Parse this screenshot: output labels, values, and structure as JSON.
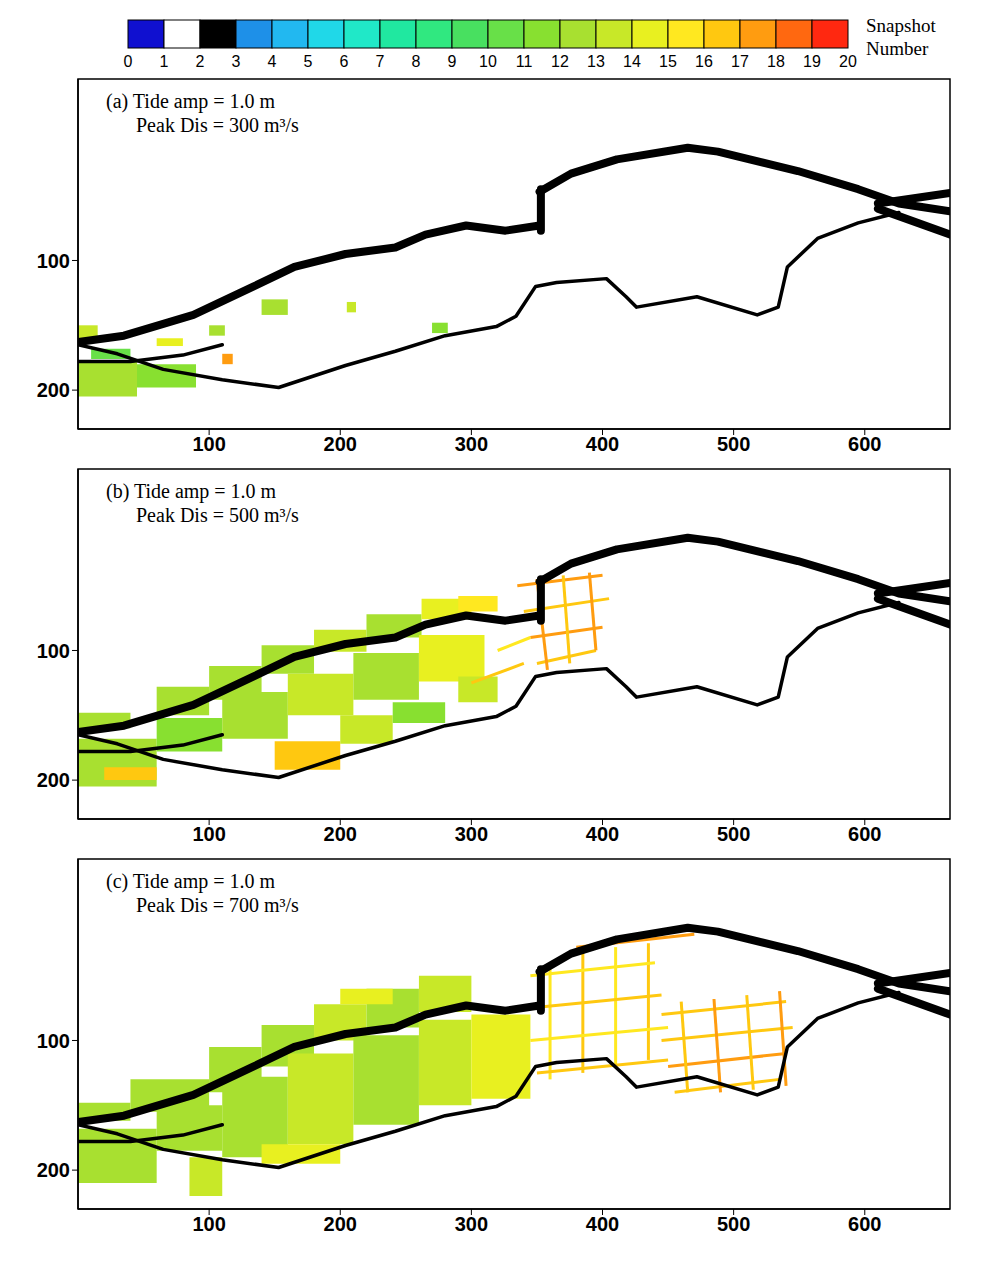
{
  "colorbar": {
    "label": "Snapshot Number",
    "ticks": [
      0,
      1,
      2,
      3,
      4,
      5,
      6,
      7,
      8,
      9,
      10,
      11,
      12,
      13,
      14,
      15,
      16,
      17,
      18,
      19,
      20
    ],
    "colors": [
      "#1010d0",
      "#ffffff",
      "#000000",
      "#1e90e8",
      "#22b8f0",
      "#20d8e8",
      "#20e8c8",
      "#20e8a0",
      "#30e880",
      "#48e060",
      "#68e048",
      "#88e030",
      "#a8e030",
      "#c8e828",
      "#e8f020",
      "#ffe820",
      "#ffc810",
      "#ff9c10",
      "#ff6810",
      "#ff2810"
    ]
  },
  "channels": [
    {
      "color": "#000000",
      "line_style": "thick",
      "points": [
        [
          0,
          163
        ],
        [
          35,
          158
        ],
        [
          88,
          142
        ],
        [
          134,
          120
        ],
        [
          165,
          105
        ],
        [
          204,
          95
        ],
        [
          242,
          90
        ],
        [
          265,
          80
        ],
        [
          296,
          73
        ],
        [
          326,
          77
        ],
        [
          352,
          73
        ]
      ]
    },
    {
      "color": "#000000",
      "line_style": "thick",
      "points": [
        [
          353,
          77
        ],
        [
          353,
          45
        ]
      ]
    },
    {
      "color": "#000000",
      "line_style": "thick",
      "points": [
        [
          352,
          47
        ],
        [
          376,
          33
        ],
        [
          411,
          22
        ],
        [
          465,
          13
        ],
        [
          488,
          16
        ],
        [
          549,
          31
        ],
        [
          595,
          45
        ],
        [
          626,
          56
        ],
        [
          665,
          62
        ]
      ]
    },
    {
      "color": "#000000",
      "line_style": "thick",
      "points": [
        [
          610,
          60
        ],
        [
          665,
          80
        ]
      ]
    },
    {
      "color": "#000000",
      "line_style": "thick",
      "points": [
        [
          610,
          56
        ],
        [
          665,
          48
        ]
      ]
    },
    {
      "color": "#000000",
      "line_style": "thin",
      "points": [
        [
          0,
          165
        ],
        [
          30,
          172
        ],
        [
          65,
          184
        ],
        [
          110,
          192
        ],
        [
          153,
          198
        ],
        [
          204,
          181
        ],
        [
          242,
          170
        ],
        [
          280,
          158
        ],
        [
          319,
          151
        ],
        [
          334,
          143
        ],
        [
          349,
          120
        ],
        [
          365,
          117
        ],
        [
          403,
          114
        ],
        [
          418,
          128
        ],
        [
          426,
          136
        ],
        [
          472,
          128
        ],
        [
          518,
          142
        ],
        [
          534,
          136
        ],
        [
          541,
          105
        ],
        [
          564,
          83
        ],
        [
          595,
          71
        ],
        [
          626,
          63
        ]
      ]
    },
    {
      "color": "#000000",
      "line_style": "thin",
      "points": [
        [
          0,
          178
        ],
        [
          40,
          178
        ],
        [
          80,
          173
        ],
        [
          110,
          165
        ]
      ]
    }
  ],
  "chart_data": [
    {
      "type": "map",
      "title": "(a) Tide amp = 1.0 m",
      "subtitle": "Peak Dis = 300 m³/s",
      "xlim": [
        0,
        665
      ],
      "xticks": [
        100,
        200,
        300,
        400,
        500,
        600
      ],
      "ylim": [
        -40,
        230
      ],
      "yticks": [
        100,
        200
      ],
      "patches": [
        [
          0,
          150,
          15,
          160,
          13.5
        ],
        [
          0,
          178,
          45,
          205,
          12.5
        ],
        [
          45,
          180,
          90,
          198,
          11.5
        ],
        [
          10,
          168,
          40,
          176,
          10.5
        ],
        [
          60,
          160,
          80,
          166,
          14.5
        ],
        [
          110,
          172,
          118,
          180,
          17.5
        ],
        [
          140,
          130,
          160,
          142,
          12.5
        ],
        [
          205,
          132,
          212,
          140,
          13
        ],
        [
          270,
          148,
          282,
          156,
          11.5
        ],
        [
          100,
          150,
          112,
          158,
          12
        ]
      ],
      "streets": []
    },
    {
      "type": "map",
      "title": "(b) Tide amp = 1.0 m",
      "subtitle": "Peak Dis = 500 m³/s",
      "xlim": [
        0,
        665
      ],
      "xticks": [
        100,
        200,
        300,
        400,
        500,
        600
      ],
      "ylim": [
        -40,
        230
      ],
      "yticks": [
        100,
        200
      ],
      "patches": [
        [
          60,
          128,
          100,
          150,
          12.5
        ],
        [
          100,
          112,
          140,
          138,
          12
        ],
        [
          140,
          96,
          180,
          118,
          12.5
        ],
        [
          180,
          84,
          220,
          101,
          13
        ],
        [
          220,
          72,
          262,
          90,
          12
        ],
        [
          262,
          60,
          300,
          76,
          14.5
        ],
        [
          290,
          58,
          320,
          70,
          15.5
        ],
        [
          0,
          148,
          40,
          160,
          12.5
        ],
        [
          0,
          168,
          60,
          205,
          12.5
        ],
        [
          60,
          152,
          110,
          178,
          11.5
        ],
        [
          110,
          132,
          160,
          168,
          12
        ],
        [
          160,
          118,
          210,
          150,
          13
        ],
        [
          210,
          102,
          260,
          138,
          12.5
        ],
        [
          260,
          88,
          310,
          124,
          14
        ],
        [
          150,
          170,
          200,
          192,
          16
        ],
        [
          200,
          150,
          240,
          172,
          13.5
        ],
        [
          240,
          140,
          280,
          156,
          11
        ],
        [
          290,
          120,
          320,
          140,
          13
        ],
        [
          20,
          190,
          60,
          200,
          16.5
        ]
      ],
      "streets": [
        [
          335,
          50,
          400,
          42,
          17
        ],
        [
          340,
          70,
          405,
          60,
          16.5
        ],
        [
          345,
          90,
          400,
          82,
          17.5
        ],
        [
          350,
          110,
          395,
          100,
          16
        ],
        [
          350,
          45,
          358,
          115,
          17
        ],
        [
          370,
          42,
          375,
          110,
          16.5
        ],
        [
          390,
          40,
          395,
          100,
          17.5
        ],
        [
          320,
          100,
          345,
          90,
          15.5
        ],
        [
          300,
          125,
          340,
          110,
          16
        ]
      ]
    },
    {
      "type": "map",
      "title": "(c) Tide amp = 1.0 m",
      "subtitle": "Peak Dis = 700 m³/s",
      "xlim": [
        0,
        665
      ],
      "xticks": [
        100,
        200,
        300,
        400,
        500,
        600
      ],
      "ylim": [
        -40,
        230
      ],
      "yticks": [
        100,
        200
      ],
      "patches": [
        [
          40,
          130,
          100,
          155,
          12.5
        ],
        [
          100,
          105,
          140,
          140,
          12
        ],
        [
          140,
          88,
          180,
          120,
          12.5
        ],
        [
          180,
          72,
          220,
          100,
          13
        ],
        [
          220,
          60,
          260,
          90,
          12
        ],
        [
          260,
          50,
          300,
          78,
          13.5
        ],
        [
          200,
          60,
          240,
          72,
          14
        ],
        [
          0,
          168,
          60,
          210,
          12.5
        ],
        [
          0,
          148,
          40,
          162,
          12.5
        ],
        [
          60,
          150,
          110,
          185,
          12
        ],
        [
          110,
          128,
          160,
          190,
          12.5
        ],
        [
          160,
          110,
          210,
          180,
          13
        ],
        [
          210,
          96,
          260,
          165,
          12.5
        ],
        [
          260,
          84,
          300,
          150,
          13.5
        ],
        [
          300,
          80,
          345,
          145,
          14
        ],
        [
          85,
          190,
          110,
          220,
          13.5
        ],
        [
          140,
          180,
          200,
          195,
          14.5
        ]
      ],
      "streets": [
        [
          360,
          40,
          360,
          130,
          15.5
        ],
        [
          385,
          30,
          385,
          125,
          16
        ],
        [
          410,
          28,
          410,
          120,
          15.5
        ],
        [
          435,
          25,
          435,
          115,
          16.5
        ],
        [
          345,
          50,
          440,
          40,
          15.5
        ],
        [
          345,
          75,
          445,
          65,
          16
        ],
        [
          345,
          100,
          450,
          90,
          15.5
        ],
        [
          350,
          125,
          450,
          115,
          16.5
        ],
        [
          445,
          80,
          540,
          70,
          16
        ],
        [
          445,
          100,
          545,
          90,
          16.5
        ],
        [
          450,
          120,
          540,
          110,
          17
        ],
        [
          455,
          140,
          535,
          130,
          16
        ],
        [
          460,
          70,
          465,
          140,
          16.5
        ],
        [
          485,
          68,
          490,
          140,
          17
        ],
        [
          510,
          65,
          515,
          138,
          16
        ],
        [
          535,
          62,
          540,
          135,
          17.5
        ],
        [
          380,
          28,
          470,
          18,
          17
        ]
      ]
    }
  ]
}
